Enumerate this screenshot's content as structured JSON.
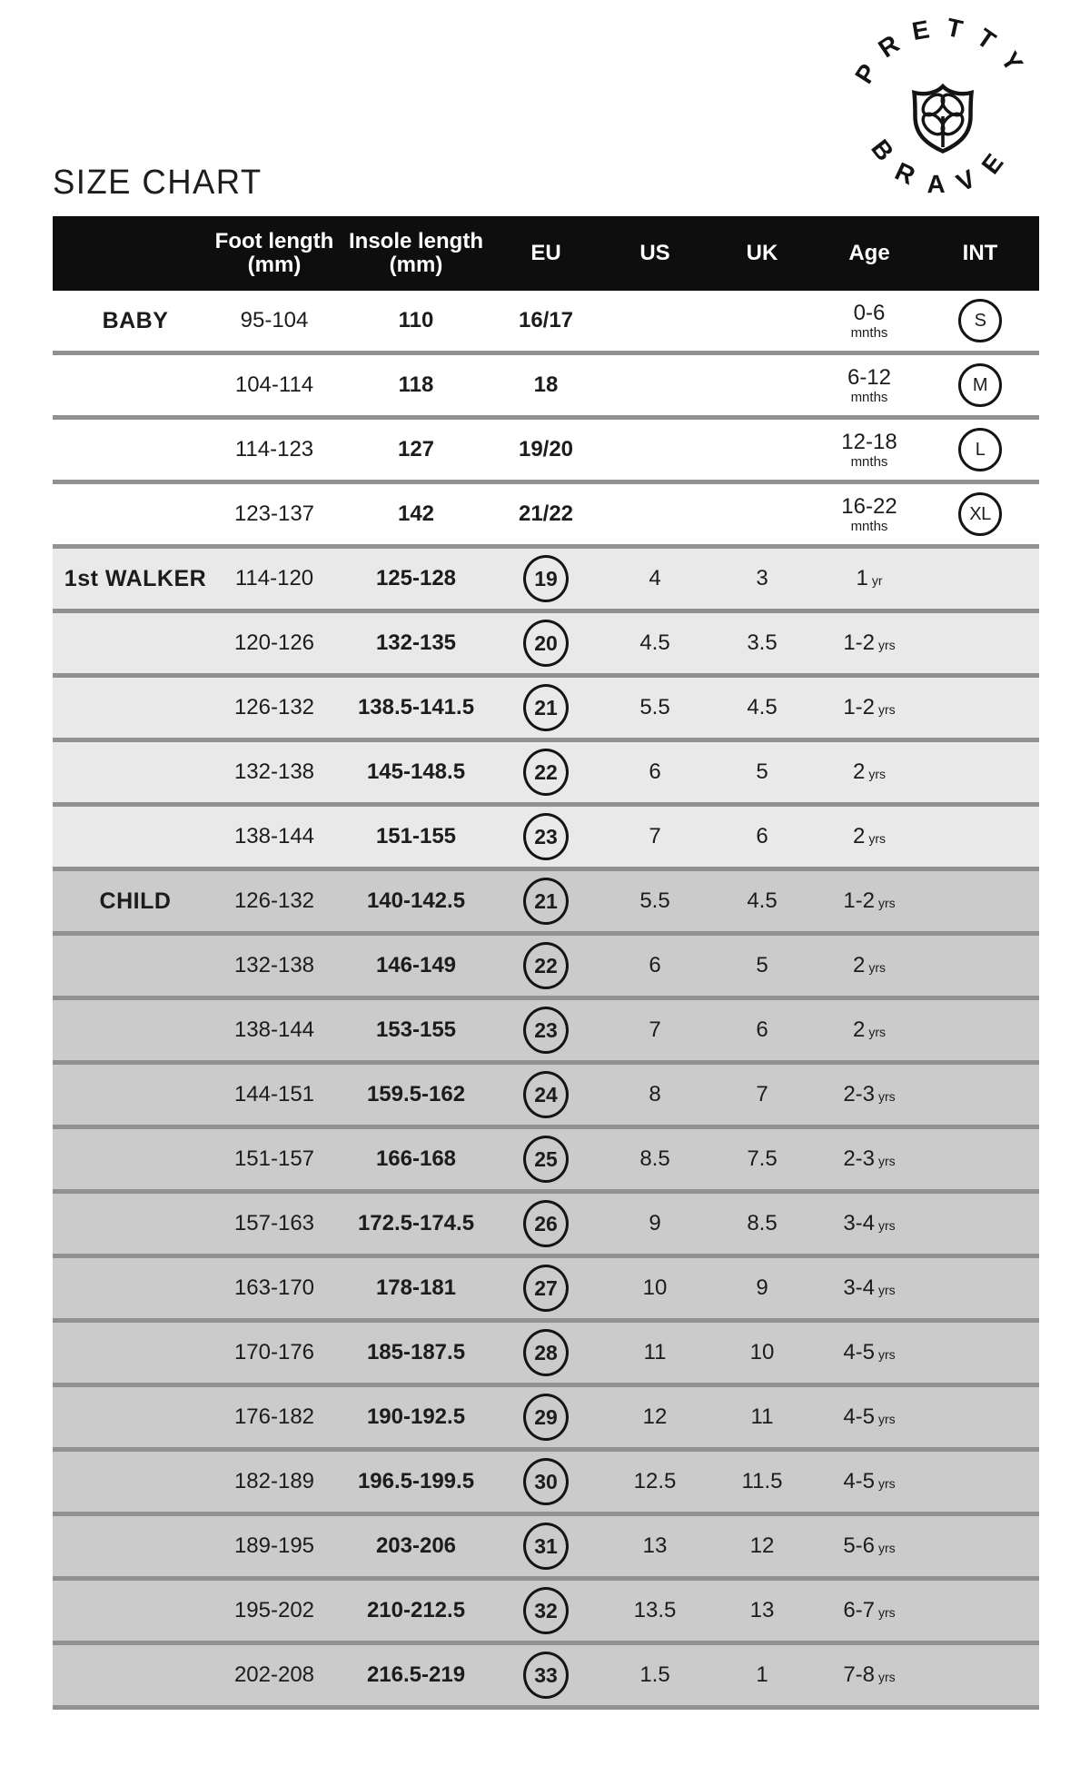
{
  "page": {
    "title": "SIZE CHART"
  },
  "logo": {
    "top_text": "PRETTY",
    "bottom_text": "BRAVE",
    "icon": "shield-clover-icon"
  },
  "colors": {
    "header_bg": "#0e0e0e",
    "header_text": "#ffffff",
    "baby_row_bg": "#ffffff",
    "walker_row_bg": "#e9e9e9",
    "child_row_bg": "#cbcbcb",
    "row_separator": "#919191",
    "text": "#1c1c1c",
    "circle_border": "#141414"
  },
  "table": {
    "columns": [
      {
        "label": "",
        "sub": ""
      },
      {
        "label": "Foot length",
        "sub": "(mm)"
      },
      {
        "label": "Insole length",
        "sub": "(mm)"
      },
      {
        "label": "EU",
        "sub": ""
      },
      {
        "label": "US",
        "sub": ""
      },
      {
        "label": "UK",
        "sub": ""
      },
      {
        "label": "Age",
        "sub": ""
      },
      {
        "label": "INT",
        "sub": ""
      }
    ],
    "sections": [
      {
        "name": "BABY",
        "style": "baby",
        "rows": [
          {
            "label": "BABY",
            "foot": "95-104",
            "insole": "110",
            "eu": {
              "value": "16/17",
              "circled": false
            },
            "us": "",
            "uk": "",
            "age": {
              "value": "0-6",
              "unit": "mnths",
              "stacked": true
            },
            "int": "S"
          },
          {
            "label": "",
            "foot": "104-114",
            "insole": "118",
            "eu": {
              "value": "18",
              "circled": false
            },
            "us": "",
            "uk": "",
            "age": {
              "value": "6-12",
              "unit": "mnths",
              "stacked": true
            },
            "int": "M"
          },
          {
            "label": "",
            "foot": "114-123",
            "insole": "127",
            "eu": {
              "value": "19/20",
              "circled": false
            },
            "us": "",
            "uk": "",
            "age": {
              "value": "12-18",
              "unit": "mnths",
              "stacked": true
            },
            "int": "L"
          },
          {
            "label": "",
            "foot": "123-137",
            "insole": "142",
            "eu": {
              "value": "21/22",
              "circled": false
            },
            "us": "",
            "uk": "",
            "age": {
              "value": "16-22",
              "unit": "mnths",
              "stacked": true
            },
            "int": "XL"
          }
        ]
      },
      {
        "name": "1st WALKER",
        "style": "walker",
        "rows": [
          {
            "label": "1st WALKER",
            "foot": "114-120",
            "insole": "125-128",
            "eu": {
              "value": "19",
              "circled": true
            },
            "us": "4",
            "uk": "3",
            "age": {
              "value": "1",
              "unit": "yr",
              "stacked": false
            },
            "int": ""
          },
          {
            "label": "",
            "foot": "120-126",
            "insole": "132-135",
            "eu": {
              "value": "20",
              "circled": true
            },
            "us": "4.5",
            "uk": "3.5",
            "age": {
              "value": "1-2",
              "unit": "yrs",
              "stacked": false
            },
            "int": ""
          },
          {
            "label": "",
            "foot": "126-132",
            "insole": "138.5-141.5",
            "eu": {
              "value": "21",
              "circled": true
            },
            "us": "5.5",
            "uk": "4.5",
            "age": {
              "value": "1-2",
              "unit": "yrs",
              "stacked": false
            },
            "int": ""
          },
          {
            "label": "",
            "foot": "132-138",
            "insole": "145-148.5",
            "eu": {
              "value": "22",
              "circled": true
            },
            "us": "6",
            "uk": "5",
            "age": {
              "value": "2",
              "unit": "yrs",
              "stacked": false
            },
            "int": ""
          },
          {
            "label": "",
            "foot": "138-144",
            "insole": "151-155",
            "eu": {
              "value": "23",
              "circled": true
            },
            "us": "7",
            "uk": "6",
            "age": {
              "value": "2",
              "unit": "yrs",
              "stacked": false
            },
            "int": ""
          }
        ]
      },
      {
        "name": "CHILD",
        "style": "child",
        "rows": [
          {
            "label": "CHILD",
            "foot": "126-132",
            "insole": "140-142.5",
            "eu": {
              "value": "21",
              "circled": true
            },
            "us": "5.5",
            "uk": "4.5",
            "age": {
              "value": "1-2",
              "unit": "yrs",
              "stacked": false
            },
            "int": ""
          },
          {
            "label": "",
            "foot": "132-138",
            "insole": "146-149",
            "eu": {
              "value": "22",
              "circled": true
            },
            "us": "6",
            "uk": "5",
            "age": {
              "value": "2",
              "unit": "yrs",
              "stacked": false
            },
            "int": ""
          },
          {
            "label": "",
            "foot": "138-144",
            "insole": "153-155",
            "eu": {
              "value": "23",
              "circled": true
            },
            "us": "7",
            "uk": "6",
            "age": {
              "value": "2",
              "unit": "yrs",
              "stacked": false
            },
            "int": ""
          },
          {
            "label": "",
            "foot": "144-151",
            "insole": "159.5-162",
            "eu": {
              "value": "24",
              "circled": true
            },
            "us": "8",
            "uk": "7",
            "age": {
              "value": "2-3",
              "unit": "yrs",
              "stacked": false
            },
            "int": ""
          },
          {
            "label": "",
            "foot": "151-157",
            "insole": "166-168",
            "eu": {
              "value": "25",
              "circled": true
            },
            "us": "8.5",
            "uk": "7.5",
            "age": {
              "value": "2-3",
              "unit": "yrs",
              "stacked": false
            },
            "int": ""
          },
          {
            "label": "",
            "foot": "157-163",
            "insole": "172.5-174.5",
            "eu": {
              "value": "26",
              "circled": true
            },
            "us": "9",
            "uk": "8.5",
            "age": {
              "value": "3-4",
              "unit": "yrs",
              "stacked": false
            },
            "int": ""
          },
          {
            "label": "",
            "foot": "163-170",
            "insole": "178-181",
            "eu": {
              "value": "27",
              "circled": true
            },
            "us": "10",
            "uk": "9",
            "age": {
              "value": "3-4",
              "unit": "yrs",
              "stacked": false
            },
            "int": ""
          },
          {
            "label": "",
            "foot": "170-176",
            "insole": "185-187.5",
            "eu": {
              "value": "28",
              "circled": true
            },
            "us": "11",
            "uk": "10",
            "age": {
              "value": "4-5",
              "unit": "yrs",
              "stacked": false
            },
            "int": ""
          },
          {
            "label": "",
            "foot": "176-182",
            "insole": "190-192.5",
            "eu": {
              "value": "29",
              "circled": true
            },
            "us": "12",
            "uk": "11",
            "age": {
              "value": "4-5",
              "unit": "yrs",
              "stacked": false
            },
            "int": ""
          },
          {
            "label": "",
            "foot": "182-189",
            "insole": "196.5-199.5",
            "eu": {
              "value": "30",
              "circled": true
            },
            "us": "12.5",
            "uk": "11.5",
            "age": {
              "value": "4-5",
              "unit": "yrs",
              "stacked": false
            },
            "int": ""
          },
          {
            "label": "",
            "foot": "189-195",
            "insole": "203-206",
            "eu": {
              "value": "31",
              "circled": true
            },
            "us": "13",
            "uk": "12",
            "age": {
              "value": "5-6",
              "unit": "yrs",
              "stacked": false
            },
            "int": ""
          },
          {
            "label": "",
            "foot": "195-202",
            "insole": "210-212.5",
            "eu": {
              "value": "32",
              "circled": true
            },
            "us": "13.5",
            "uk": "13",
            "age": {
              "value": "6-7",
              "unit": "yrs",
              "stacked": false
            },
            "int": ""
          },
          {
            "label": "",
            "foot": "202-208",
            "insole": "216.5-219",
            "eu": {
              "value": "33",
              "circled": true
            },
            "us": "1.5",
            "uk": "1",
            "age": {
              "value": "7-8",
              "unit": "yrs",
              "stacked": false
            },
            "int": ""
          }
        ]
      }
    ]
  }
}
